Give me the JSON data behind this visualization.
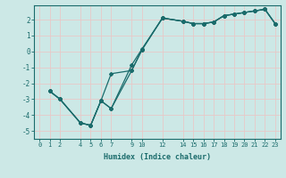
{
  "title": "",
  "xlabel": "Humidex (Indice chaleur)",
  "bg_color": "#cce8e6",
  "grid_color": "#e8c8c8",
  "line_color": "#1a6b6b",
  "xlim": [
    -0.5,
    23.5
  ],
  "ylim": [
    -5.5,
    2.9
  ],
  "xticks": [
    0,
    1,
    2,
    4,
    5,
    6,
    7,
    9,
    10,
    12,
    14,
    15,
    16,
    17,
    18,
    19,
    20,
    21,
    22,
    23
  ],
  "yticks": [
    -5,
    -4,
    -3,
    -2,
    -1,
    0,
    1,
    2
  ],
  "line1_x": [
    1,
    2,
    4,
    5,
    6,
    7,
    9,
    10,
    12,
    14,
    15,
    16,
    17,
    18,
    19,
    20,
    21,
    22,
    23
  ],
  "line1_y": [
    -2.5,
    -3.0,
    -4.5,
    -4.65,
    -3.1,
    -3.6,
    -0.85,
    0.15,
    2.1,
    1.9,
    1.75,
    1.75,
    1.85,
    2.25,
    2.35,
    2.45,
    2.55,
    2.65,
    1.75
  ],
  "line2_x": [
    1,
    2,
    4,
    5,
    6,
    7,
    9,
    10,
    12,
    14,
    15,
    16,
    17,
    18,
    19,
    20,
    21,
    22,
    23
  ],
  "line2_y": [
    -2.5,
    -3.0,
    -4.5,
    -4.65,
    -3.1,
    -1.4,
    -1.2,
    0.1,
    2.1,
    1.9,
    1.75,
    1.75,
    1.85,
    2.25,
    2.35,
    2.45,
    2.55,
    2.65,
    1.75
  ],
  "line3_x": [
    1,
    2,
    4,
    5,
    6,
    7,
    9,
    10,
    12,
    14,
    15,
    16,
    17,
    18,
    19,
    20,
    21,
    22,
    23
  ],
  "line3_y": [
    -2.5,
    -3.0,
    -4.5,
    -4.65,
    -3.1,
    -3.6,
    -1.2,
    0.1,
    2.1,
    1.9,
    1.75,
    1.75,
    1.85,
    2.25,
    2.35,
    2.45,
    2.55,
    2.65,
    1.75
  ]
}
